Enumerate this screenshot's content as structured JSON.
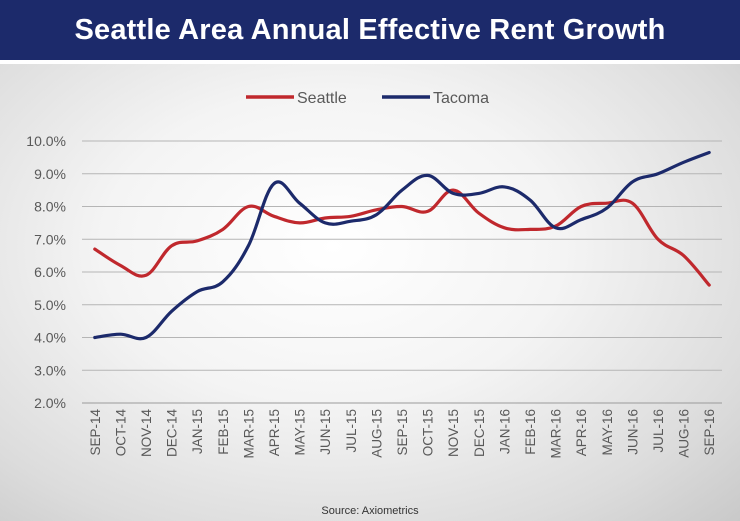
{
  "chart_data": {
    "type": "line",
    "title": "Seattle Area Annual Effective Rent Growth",
    "source": "Source: Axiometrics",
    "legend_position": "top-center",
    "grid": true,
    "ylim": [
      2.0,
      10.0
    ],
    "yticks": [
      "10.0%",
      "9.0%",
      "8.0%",
      "7.0%",
      "6.0%",
      "5.0%",
      "4.0%",
      "3.0%",
      "2.0%"
    ],
    "ytick_values": [
      10,
      9,
      8,
      7,
      6,
      5,
      4,
      3,
      2
    ],
    "categories": [
      "SEP-14",
      "OCT-14",
      "NOV-14",
      "DEC-14",
      "JAN-15",
      "FEB-15",
      "MAR-15",
      "APR-15",
      "MAY-15",
      "JUN-15",
      "JUL-15",
      "AUG-15",
      "SEP-15",
      "OCT-15",
      "NOV-15",
      "DEC-15",
      "JAN-16",
      "FEB-16",
      "MAR-16",
      "APR-16",
      "MAY-16",
      "JUN-16",
      "JUL-16",
      "AUG-16",
      "SEP-16"
    ],
    "series": [
      {
        "name": "Seattle",
        "color": "#c0282d",
        "values": [
          6.7,
          6.2,
          5.9,
          6.8,
          6.95,
          7.3,
          8.0,
          7.7,
          7.5,
          7.65,
          7.7,
          7.9,
          8.0,
          7.85,
          8.5,
          7.8,
          7.35,
          7.3,
          7.4,
          8.0,
          8.1,
          8.1,
          7.0,
          6.5,
          5.6
        ]
      },
      {
        "name": "Tacoma",
        "color": "#1c2a6b",
        "values": [
          4.0,
          4.1,
          4.0,
          4.8,
          5.4,
          5.7,
          6.8,
          8.7,
          8.1,
          7.5,
          7.55,
          7.75,
          8.5,
          8.95,
          8.4,
          8.4,
          8.6,
          8.2,
          7.35,
          7.6,
          7.95,
          8.75,
          9.0,
          9.35,
          9.65
        ]
      }
    ]
  }
}
